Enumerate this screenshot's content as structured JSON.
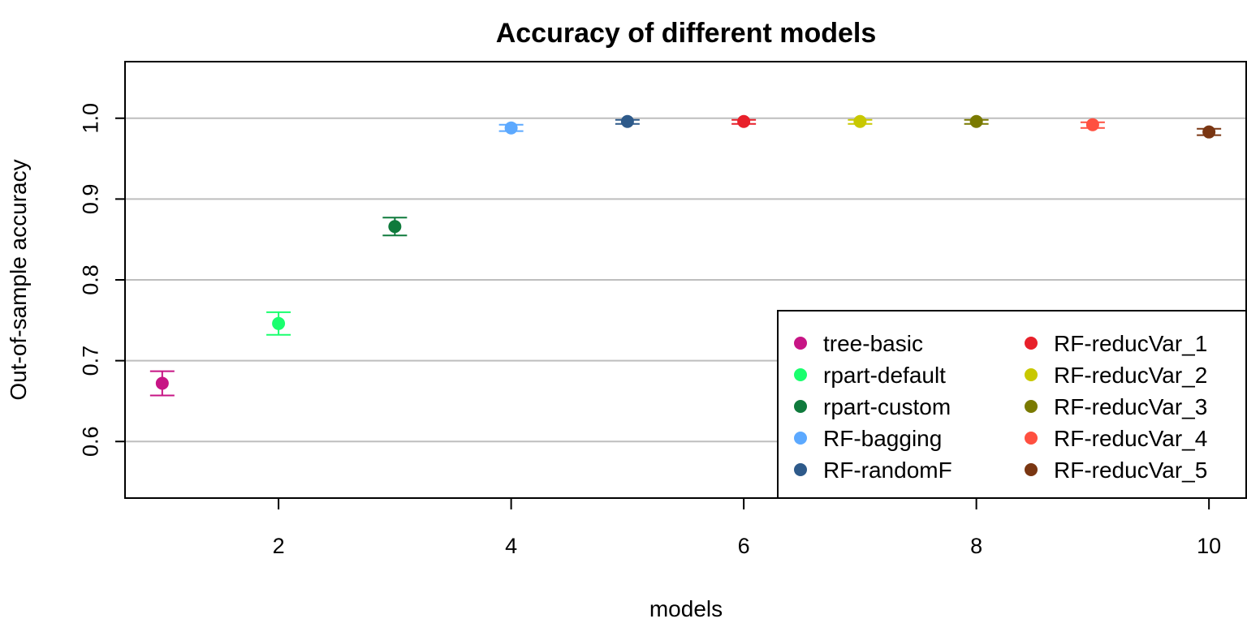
{
  "chart_data": {
    "type": "scatter",
    "title": "Accuracy of different models",
    "xlabel": "models",
    "ylabel": "Out-of-sample accuracy",
    "xlim": [
      0.68,
      10.32
    ],
    "ylim": [
      0.53,
      1.07
    ],
    "x_ticks": [
      2,
      4,
      6,
      8,
      10
    ],
    "y_ticks": [
      0.6,
      0.7,
      0.8,
      0.9,
      1.0
    ],
    "y_tick_labels": [
      "0.6",
      "0.7",
      "0.8",
      "0.9",
      "1.0"
    ],
    "grid": "horizontal",
    "grid_color": "#bebebe",
    "legend_position": "bottom-right",
    "legend_columns": 2,
    "series": [
      {
        "name": "tree-basic",
        "x": 1,
        "y": 0.672,
        "lower": 0.657,
        "upper": 0.687,
        "color": "#c71585"
      },
      {
        "name": "rpart-default",
        "x": 2,
        "y": 0.746,
        "lower": 0.732,
        "upper": 0.76,
        "color": "#1aff6e"
      },
      {
        "name": "rpart-custom",
        "x": 3,
        "y": 0.866,
        "lower": 0.855,
        "upper": 0.877,
        "color": "#0f7a3c"
      },
      {
        "name": "RF-bagging",
        "x": 4,
        "y": 0.988,
        "lower": 0.984,
        "upper": 0.992,
        "color": "#5ca9ff"
      },
      {
        "name": "RF-randomF",
        "x": 5,
        "y": 0.996,
        "lower": 0.993,
        "upper": 0.998,
        "color": "#2e5a8a"
      },
      {
        "name": "RF-reducVar_1",
        "x": 6,
        "y": 0.996,
        "lower": 0.993,
        "upper": 0.998,
        "color": "#e8202a"
      },
      {
        "name": "RF-reducVar_2",
        "x": 7,
        "y": 0.996,
        "lower": 0.993,
        "upper": 0.998,
        "color": "#c8c800"
      },
      {
        "name": "RF-reducVar_3",
        "x": 8,
        "y": 0.996,
        "lower": 0.993,
        "upper": 0.998,
        "color": "#7a7a00"
      },
      {
        "name": "RF-reducVar_4",
        "x": 9,
        "y": 0.992,
        "lower": 0.988,
        "upper": 0.995,
        "color": "#ff5040"
      },
      {
        "name": "RF-reducVar_5",
        "x": 10,
        "y": 0.983,
        "lower": 0.979,
        "upper": 0.987,
        "color": "#7a3612"
      }
    ]
  }
}
